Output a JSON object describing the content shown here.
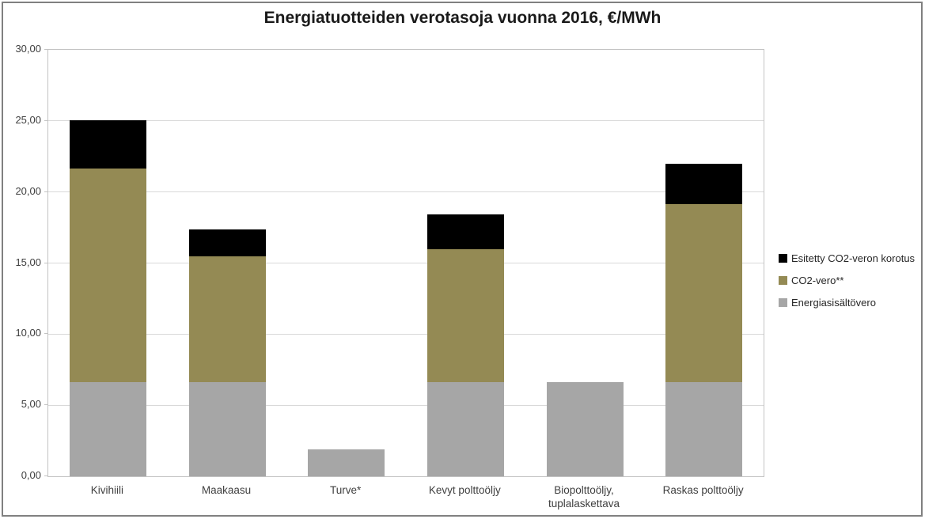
{
  "chart_data": {
    "type": "bar",
    "stacked": true,
    "title": "Energiatuotteiden verotasoja vuonna 2016, €/MWh",
    "categories": [
      "Kivihiili",
      "Maakaasu",
      "Turve*",
      "Kevyt polttoöljy",
      "Biopolttoöljy,\ntuplalaskettava",
      "Raskas polttoöljy"
    ],
    "series": [
      {
        "name": "Energiasisältövero",
        "color": "#A6A6A6",
        "values": [
          6.65,
          6.65,
          1.9,
          6.65,
          6.65,
          6.65
        ]
      },
      {
        "name": "CO2-vero**",
        "color": "#948A54",
        "values": [
          15.0,
          8.8,
          0,
          9.35,
          0,
          12.5
        ]
      },
      {
        "name": "Esitetty CO2-veron korotus",
        "color": "#000000",
        "values": [
          3.4,
          1.9,
          0,
          2.45,
          0,
          2.85
        ]
      }
    ],
    "totals": [
      25.05,
      17.35,
      1.9,
      18.45,
      6.65,
      22.0
    ],
    "xlabel": "",
    "ylabel": "",
    "ylim": [
      0,
      30
    ],
    "y_tick_step": 5,
    "y_tick_labels": [
      "0,00",
      "5,00",
      "10,00",
      "15,00",
      "20,00",
      "25,00",
      "30,00"
    ],
    "grid": "horizontal-major",
    "legend_position": "right",
    "legend_order": [
      "Esitetty CO2-veron korotus",
      "CO2-vero**",
      "Energiasisältövero"
    ]
  },
  "colors": {
    "background": "#FFFFFF",
    "figure_border": "#808080",
    "plot_border": "#C3C3C3",
    "gridline": "#D9D9D9",
    "tick_mark": "#C3C3C3",
    "axis_text": "#404040",
    "title_text": "#1A1A1A"
  }
}
